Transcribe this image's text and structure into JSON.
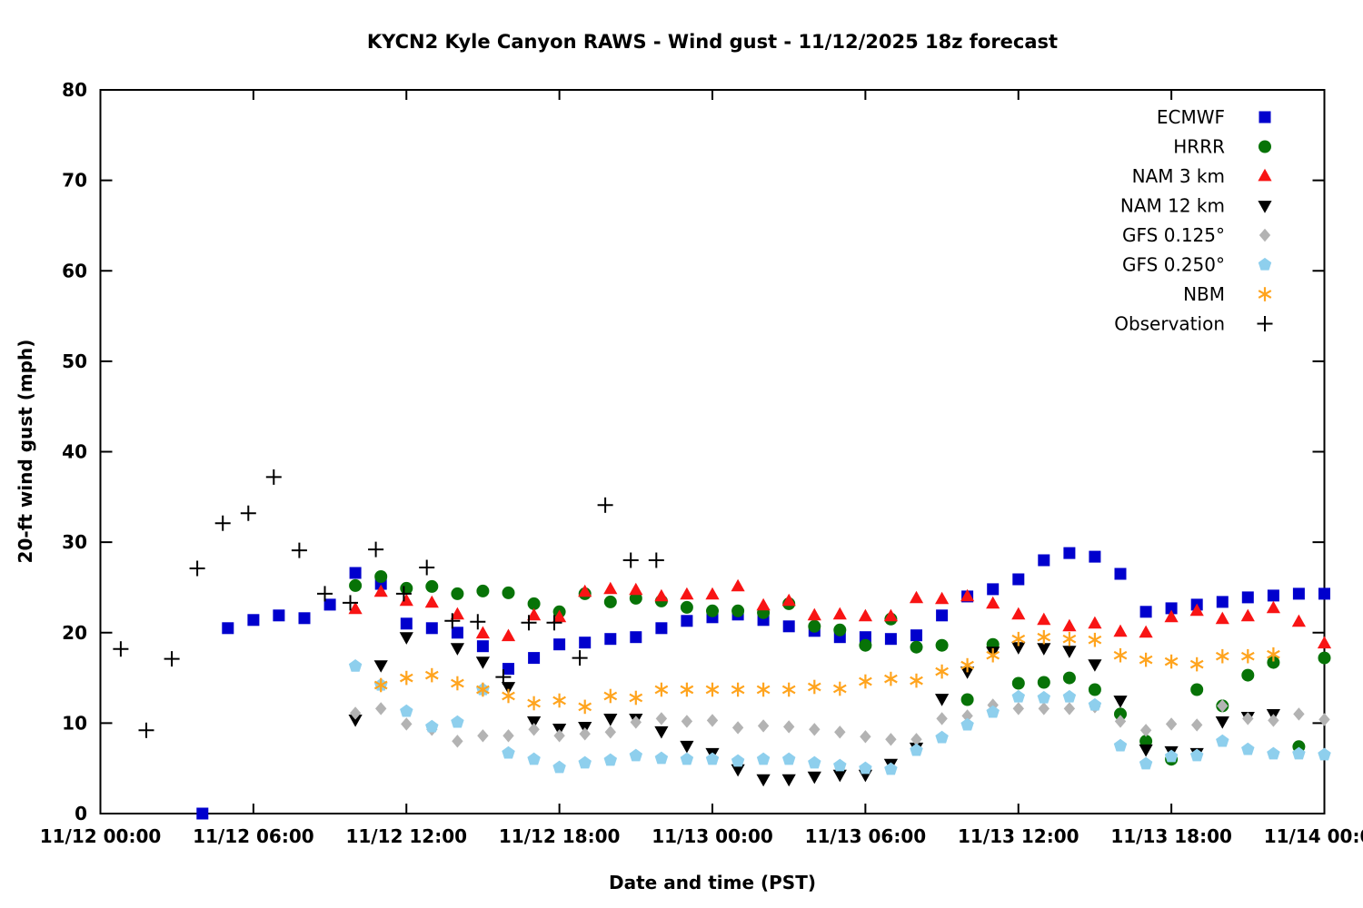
{
  "chart_data": {
    "type": "scatter",
    "title": "KYCN2 Kyle Canyon RAWS - Wind gust - 11/12/2025 18z forecast",
    "xlabel": "Date and time (PST)",
    "ylabel": "20-ft wind gust (mph)",
    "grid": false,
    "legend_position": "top-right-inside",
    "x_axis": {
      "unit": "hours since 11/12 00:00 PST",
      "min": 0,
      "max": 48,
      "tick_interval_hours": 6,
      "tick_labels": [
        "11/12 00:00",
        "11/12 06:00",
        "11/12 12:00",
        "11/12 18:00",
        "11/13 00:00",
        "11/13 06:00",
        "11/13 12:00",
        "11/13 18:00",
        "11/14 00:00"
      ]
    },
    "y_axis": {
      "min": 0,
      "max": 80,
      "tick_interval": 10,
      "tick_labels": [
        "0",
        "10",
        "20",
        "30",
        "40",
        "50",
        "60",
        "70",
        "80"
      ]
    },
    "series": [
      {
        "name": "ECMWF",
        "marker": "square",
        "color": "#0000cd",
        "points": [
          [
            4,
            0
          ],
          [
            5,
            20.5
          ],
          [
            6,
            21.4
          ],
          [
            7,
            21.9
          ],
          [
            8,
            21.6
          ],
          [
            9,
            23.1
          ],
          [
            10,
            26.6
          ],
          [
            11,
            25.4
          ],
          [
            12,
            21.0
          ],
          [
            13,
            20.5
          ],
          [
            14,
            20.0
          ],
          [
            15,
            18.5
          ],
          [
            16,
            16.0
          ],
          [
            17,
            17.2
          ],
          [
            18,
            18.7
          ],
          [
            19,
            18.9
          ],
          [
            20,
            19.3
          ],
          [
            21,
            19.5
          ],
          [
            22,
            20.5
          ],
          [
            23,
            21.3
          ],
          [
            24,
            21.7
          ],
          [
            25,
            22.0
          ],
          [
            26,
            21.4
          ],
          [
            27,
            20.7
          ],
          [
            28,
            20.2
          ],
          [
            29,
            19.5
          ],
          [
            30,
            19.5
          ],
          [
            31,
            19.3
          ],
          [
            32,
            19.7
          ],
          [
            33,
            21.9
          ],
          [
            34,
            24.0
          ],
          [
            35,
            24.8
          ],
          [
            36,
            25.9
          ],
          [
            37,
            28.0
          ],
          [
            38,
            28.8
          ],
          [
            39,
            28.4
          ],
          [
            40,
            26.5
          ],
          [
            41,
            22.3
          ],
          [
            42,
            22.7
          ],
          [
            43,
            23.1
          ],
          [
            44,
            23.4
          ],
          [
            45,
            23.9
          ],
          [
            46,
            24.1
          ],
          [
            47,
            24.3
          ],
          [
            48,
            24.3
          ]
        ]
      },
      {
        "name": "HRRR",
        "marker": "circle",
        "color": "#077307",
        "points": [
          [
            10,
            25.2
          ],
          [
            11,
            26.2
          ],
          [
            12,
            24.9
          ],
          [
            13,
            25.1
          ],
          [
            14,
            24.3
          ],
          [
            15,
            24.6
          ],
          [
            16,
            24.4
          ],
          [
            17,
            23.2
          ],
          [
            18,
            22.3
          ],
          [
            19,
            24.3
          ],
          [
            20,
            23.4
          ],
          [
            21,
            23.8
          ],
          [
            22,
            23.5
          ],
          [
            23,
            22.8
          ],
          [
            24,
            22.4
          ],
          [
            25,
            22.4
          ],
          [
            26,
            22.2
          ],
          [
            27,
            23.2
          ],
          [
            28,
            20.7
          ],
          [
            29,
            20.3
          ],
          [
            30,
            18.6
          ],
          [
            31,
            21.5
          ],
          [
            32,
            18.4
          ],
          [
            33,
            18.6
          ],
          [
            34,
            12.6
          ],
          [
            35,
            18.7
          ],
          [
            36,
            14.4
          ],
          [
            37,
            14.5
          ],
          [
            38,
            15.0
          ],
          [
            39,
            13.7
          ],
          [
            40,
            11.0
          ],
          [
            41,
            8.0
          ],
          [
            42,
            6.0
          ],
          [
            43,
            13.7
          ],
          [
            44,
            11.9
          ],
          [
            45,
            15.3
          ],
          [
            46,
            16.7
          ],
          [
            47,
            7.4
          ],
          [
            48,
            17.2
          ]
        ]
      },
      {
        "name": "NAM 3 km",
        "marker": "triangle-up",
        "color": "#f81414",
        "points": [
          [
            10,
            22.6
          ],
          [
            11,
            24.5
          ],
          [
            12,
            23.5
          ],
          [
            13,
            23.3
          ],
          [
            14,
            22.0
          ],
          [
            15,
            19.9
          ],
          [
            16,
            19.6
          ],
          [
            17,
            21.9
          ],
          [
            18,
            21.7
          ],
          [
            19,
            24.5
          ],
          [
            20,
            24.8
          ],
          [
            21,
            24.7
          ],
          [
            22,
            24.0
          ],
          [
            23,
            24.2
          ],
          [
            24,
            24.2
          ],
          [
            25,
            25.1
          ],
          [
            26,
            23.0
          ],
          [
            27,
            23.5
          ],
          [
            28,
            21.9
          ],
          [
            29,
            22.0
          ],
          [
            30,
            21.8
          ],
          [
            31,
            21.8
          ],
          [
            32,
            23.8
          ],
          [
            33,
            23.7
          ],
          [
            34,
            24.0
          ],
          [
            35,
            23.2
          ],
          [
            36,
            22.0
          ],
          [
            37,
            21.4
          ],
          [
            38,
            20.7
          ],
          [
            39,
            21.0
          ],
          [
            40,
            20.1
          ],
          [
            41,
            20.0
          ],
          [
            42,
            21.7
          ],
          [
            43,
            22.4
          ],
          [
            44,
            21.5
          ],
          [
            45,
            21.8
          ],
          [
            46,
            22.7
          ],
          [
            47,
            21.2
          ],
          [
            48,
            18.8
          ]
        ]
      },
      {
        "name": "NAM 12 km",
        "marker": "triangle-down",
        "color": "#000000",
        "points": [
          [
            10,
            10.4
          ],
          [
            11,
            16.4
          ],
          [
            12,
            19.5
          ],
          [
            14,
            18.3
          ],
          [
            15,
            16.8
          ],
          [
            16,
            14.0
          ],
          [
            17,
            10.2
          ],
          [
            18,
            9.4
          ],
          [
            19,
            9.6
          ],
          [
            20,
            10.5
          ],
          [
            21,
            10.5
          ],
          [
            22,
            9.1
          ],
          [
            23,
            7.5
          ],
          [
            24,
            6.7
          ],
          [
            25,
            4.9
          ],
          [
            26,
            3.8
          ],
          [
            27,
            3.8
          ],
          [
            28,
            4.1
          ],
          [
            29,
            4.3
          ],
          [
            30,
            4.3
          ],
          [
            31,
            5.5
          ],
          [
            32,
            7.3
          ],
          [
            33,
            12.7
          ],
          [
            34,
            15.7
          ],
          [
            35,
            17.9
          ],
          [
            36,
            18.4
          ],
          [
            37,
            18.3
          ],
          [
            38,
            18.0
          ],
          [
            39,
            16.5
          ],
          [
            40,
            12.5
          ],
          [
            41,
            7.1
          ],
          [
            42,
            6.9
          ],
          [
            43,
            6.7
          ],
          [
            44,
            10.2
          ],
          [
            45,
            10.7
          ],
          [
            46,
            11.0
          ]
        ]
      },
      {
        "name": "GFS 0.125°",
        "marker": "diamond",
        "color": "#b3b3b3",
        "points": [
          [
            10,
            11.1
          ],
          [
            11,
            11.6
          ],
          [
            12,
            9.9
          ],
          [
            13,
            9.3
          ],
          [
            14,
            8.0
          ],
          [
            15,
            8.6
          ],
          [
            16,
            8.6
          ],
          [
            17,
            9.3
          ],
          [
            18,
            8.6
          ],
          [
            19,
            8.8
          ],
          [
            20,
            9.0
          ],
          [
            21,
            10.1
          ],
          [
            22,
            10.5
          ],
          [
            23,
            10.2
          ],
          [
            24,
            10.3
          ],
          [
            25,
            9.5
          ],
          [
            26,
            9.7
          ],
          [
            27,
            9.6
          ],
          [
            28,
            9.3
          ],
          [
            29,
            9.0
          ],
          [
            30,
            8.5
          ],
          [
            31,
            8.2
          ],
          [
            32,
            8.2
          ],
          [
            33,
            10.5
          ],
          [
            34,
            10.8
          ],
          [
            35,
            12.0
          ],
          [
            36,
            11.6
          ],
          [
            37,
            11.6
          ],
          [
            38,
            11.6
          ],
          [
            39,
            11.8
          ],
          [
            40,
            10.2
          ],
          [
            41,
            9.2
          ],
          [
            42,
            9.9
          ],
          [
            43,
            9.8
          ],
          [
            44,
            11.9
          ],
          [
            45,
            10.5
          ],
          [
            46,
            10.3
          ],
          [
            47,
            11.0
          ],
          [
            48,
            10.4
          ]
        ]
      },
      {
        "name": "GFS 0.250°",
        "marker": "pentagon",
        "color": "#8ecfed",
        "points": [
          [
            10,
            16.3
          ],
          [
            11,
            14.2
          ],
          [
            12,
            11.3
          ],
          [
            13,
            9.6
          ],
          [
            14,
            10.1
          ],
          [
            15,
            13.7
          ],
          [
            16,
            6.7
          ],
          [
            17,
            6.0
          ],
          [
            18,
            5.1
          ],
          [
            19,
            5.6
          ],
          [
            20,
            5.9
          ],
          [
            21,
            6.4
          ],
          [
            22,
            6.1
          ],
          [
            23,
            6.0
          ],
          [
            24,
            6.0
          ],
          [
            25,
            5.8
          ],
          [
            26,
            6.0
          ],
          [
            27,
            6.0
          ],
          [
            28,
            5.6
          ],
          [
            29,
            5.3
          ],
          [
            30,
            5.0
          ],
          [
            31,
            4.9
          ],
          [
            32,
            7.0
          ],
          [
            33,
            8.4
          ],
          [
            34,
            9.8
          ],
          [
            35,
            11.2
          ],
          [
            36,
            12.9
          ],
          [
            37,
            12.8
          ],
          [
            38,
            12.9
          ],
          [
            39,
            12.0
          ],
          [
            40,
            7.5
          ],
          [
            41,
            5.5
          ],
          [
            42,
            6.3
          ],
          [
            43,
            6.4
          ],
          [
            44,
            8.0
          ],
          [
            45,
            7.1
          ],
          [
            46,
            6.6
          ],
          [
            47,
            6.6
          ],
          [
            48,
            6.5
          ]
        ]
      },
      {
        "name": "NBM",
        "marker": "asterisk",
        "color": "#ffa41e",
        "points": [
          [
            11,
            14.2
          ],
          [
            12,
            15.0
          ],
          [
            13,
            15.3
          ],
          [
            14,
            14.4
          ],
          [
            15,
            13.7
          ],
          [
            16,
            13.0
          ],
          [
            17,
            12.2
          ],
          [
            18,
            12.5
          ],
          [
            19,
            11.8
          ],
          [
            20,
            13.0
          ],
          [
            21,
            12.8
          ],
          [
            22,
            13.7
          ],
          [
            23,
            13.7
          ],
          [
            24,
            13.7
          ],
          [
            25,
            13.7
          ],
          [
            26,
            13.7
          ],
          [
            27,
            13.7
          ],
          [
            28,
            14.0
          ],
          [
            29,
            13.8
          ],
          [
            30,
            14.6
          ],
          [
            31,
            14.9
          ],
          [
            32,
            14.7
          ],
          [
            33,
            15.7
          ],
          [
            34,
            16.4
          ],
          [
            35,
            17.5
          ],
          [
            36,
            19.3
          ],
          [
            37,
            19.5
          ],
          [
            38,
            19.3
          ],
          [
            39,
            19.2
          ],
          [
            40,
            17.5
          ],
          [
            41,
            17.0
          ],
          [
            42,
            16.8
          ],
          [
            43,
            16.5
          ],
          [
            44,
            17.4
          ],
          [
            45,
            17.4
          ],
          [
            46,
            17.6
          ]
        ]
      },
      {
        "name": "Observation",
        "marker": "plus",
        "color": "#000000",
        "points": [
          [
            0.8,
            18.2
          ],
          [
            1.8,
            9.2
          ],
          [
            2.8,
            17.1
          ],
          [
            3.8,
            27.1
          ],
          [
            4.8,
            32.1
          ],
          [
            5.8,
            33.2
          ],
          [
            6.8,
            37.2
          ],
          [
            7.8,
            29.1
          ],
          [
            8.8,
            24.3
          ],
          [
            9.8,
            23.3
          ],
          [
            10.8,
            29.2
          ],
          [
            11.9,
            24.3
          ],
          [
            12.8,
            27.2
          ],
          [
            13.8,
            21.3
          ],
          [
            14.8,
            21.2
          ],
          [
            15.8,
            15.1
          ],
          [
            16.8,
            21.1
          ],
          [
            17.8,
            21.1
          ],
          [
            18.8,
            17.2
          ],
          [
            19.8,
            34.1
          ],
          [
            20.8,
            28.0
          ],
          [
            21.8,
            28.0
          ]
        ]
      }
    ]
  }
}
